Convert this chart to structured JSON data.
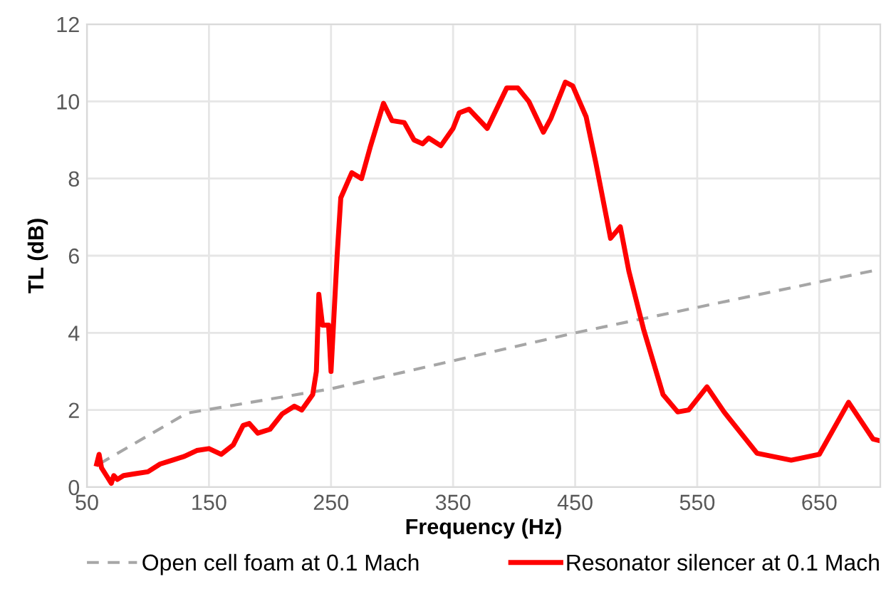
{
  "chart_data": {
    "type": "line",
    "xlabel": "Frequency (Hz)",
    "ylabel": "TL (dB)",
    "xlim": [
      50,
      700
    ],
    "xticks": [
      50,
      150,
      250,
      350,
      450,
      550,
      650
    ],
    "ylim": [
      0,
      12
    ],
    "yticks": [
      0,
      2,
      4,
      6,
      8,
      10,
      12
    ],
    "grid": true,
    "legend": "bottom",
    "series": [
      {
        "name": "Open cell foam at 0.1 Mach",
        "color": "#a6a6a6",
        "line_style": "dashed",
        "x": [
          60,
          132,
          250,
          450,
          700
        ],
        "values": [
          0.6,
          1.92,
          2.55,
          4.0,
          5.65
        ]
      },
      {
        "name": "Resonator silencer at 0.1 Mach",
        "color": "#ff0000",
        "line_style": "solid",
        "x": [
          58,
          60,
          62,
          66,
          70,
          72,
          75,
          80,
          90,
          100,
          110,
          120,
          130,
          140,
          150,
          160,
          170,
          178,
          183,
          190,
          200,
          210,
          220,
          226,
          235,
          238,
          240,
          243,
          248,
          250,
          255,
          258,
          267,
          275,
          282,
          293,
          300,
          310,
          318,
          325,
          330,
          340,
          350,
          355,
          363,
          378,
          394,
          403,
          412,
          424,
          430,
          442,
          448,
          459,
          467,
          479,
          487,
          494,
          506,
          522,
          534,
          543,
          558,
          572,
          599,
          627,
          650,
          674,
          694,
          700
        ],
        "values": [
          0.6,
          0.85,
          0.5,
          0.3,
          0.1,
          0.3,
          0.2,
          0.3,
          0.35,
          0.4,
          0.6,
          0.7,
          0.8,
          0.95,
          1.0,
          0.85,
          1.1,
          1.6,
          1.65,
          1.4,
          1.5,
          1.9,
          2.1,
          2.0,
          2.4,
          3.0,
          5.0,
          4.2,
          4.2,
          3.0,
          6.0,
          7.5,
          8.15,
          8.0,
          8.8,
          9.95,
          9.5,
          9.45,
          9.0,
          8.9,
          9.05,
          8.85,
          9.3,
          9.7,
          9.8,
          9.3,
          10.35,
          10.35,
          10.0,
          9.2,
          9.55,
          10.5,
          10.4,
          9.6,
          8.4,
          6.45,
          6.75,
          5.6,
          4.1,
          2.4,
          1.95,
          2.0,
          2.6,
          1.95,
          0.88,
          0.7,
          0.85,
          2.2,
          1.25,
          1.2
        ]
      }
    ]
  }
}
